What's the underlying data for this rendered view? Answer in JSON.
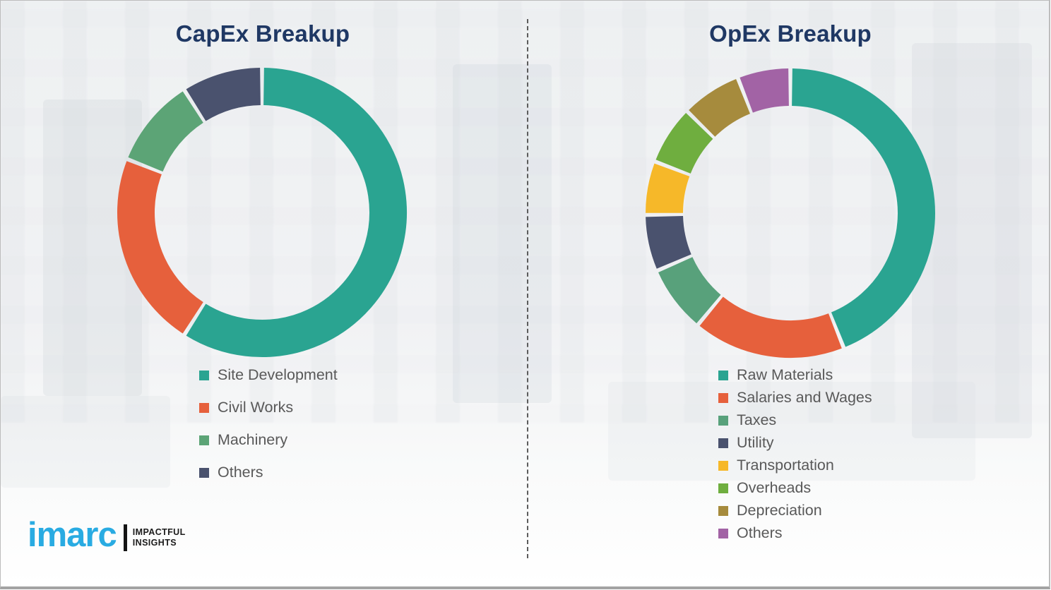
{
  "page": {
    "background_color": "#f0f1f3",
    "divider_style": "vertical-dashed",
    "divider_color": "#5c5c5c"
  },
  "titles": {
    "capex": "CapEx Breakup",
    "opex": "OpEx Breakup"
  },
  "title_color": "#1f3864",
  "legend_text_color": "#595959",
  "chart_data": [
    {
      "type": "pie",
      "variant": "donut",
      "title": "CapEx Breakup",
      "labels": [
        "Site Development",
        "Civil Works",
        "Machinery",
        "Others"
      ],
      "values": [
        59,
        22,
        10,
        9
      ],
      "colors": [
        "#2aa491",
        "#e6603c",
        "#5ca476",
        "#4a526e"
      ],
      "start_angle_deg": 0,
      "direction": "clockwise",
      "legend_position": "below-left"
    },
    {
      "type": "pie",
      "variant": "donut",
      "title": "OpEx Breakup",
      "labels": [
        "Raw Materials",
        "Salaries and Wages",
        "Taxes",
        "Utility",
        "Transportation",
        "Overheads",
        "Depreciation",
        "Others"
      ],
      "values": [
        44,
        17,
        7.5,
        6.3,
        6,
        6.6,
        6.7,
        5.9
      ],
      "colors": [
        "#2aa491",
        "#e6603c",
        "#58a17b",
        "#4a526e",
        "#f6b829",
        "#6fae3f",
        "#a68b3d",
        "#a263a5"
      ],
      "start_angle_deg": 0,
      "direction": "clockwise",
      "legend_position": "below-left"
    }
  ],
  "logo": {
    "brand": "imarc",
    "tagline_line1": "IMPACTFUL",
    "tagline_line2": "INSIGHTS",
    "brand_color": "#29abe2"
  }
}
